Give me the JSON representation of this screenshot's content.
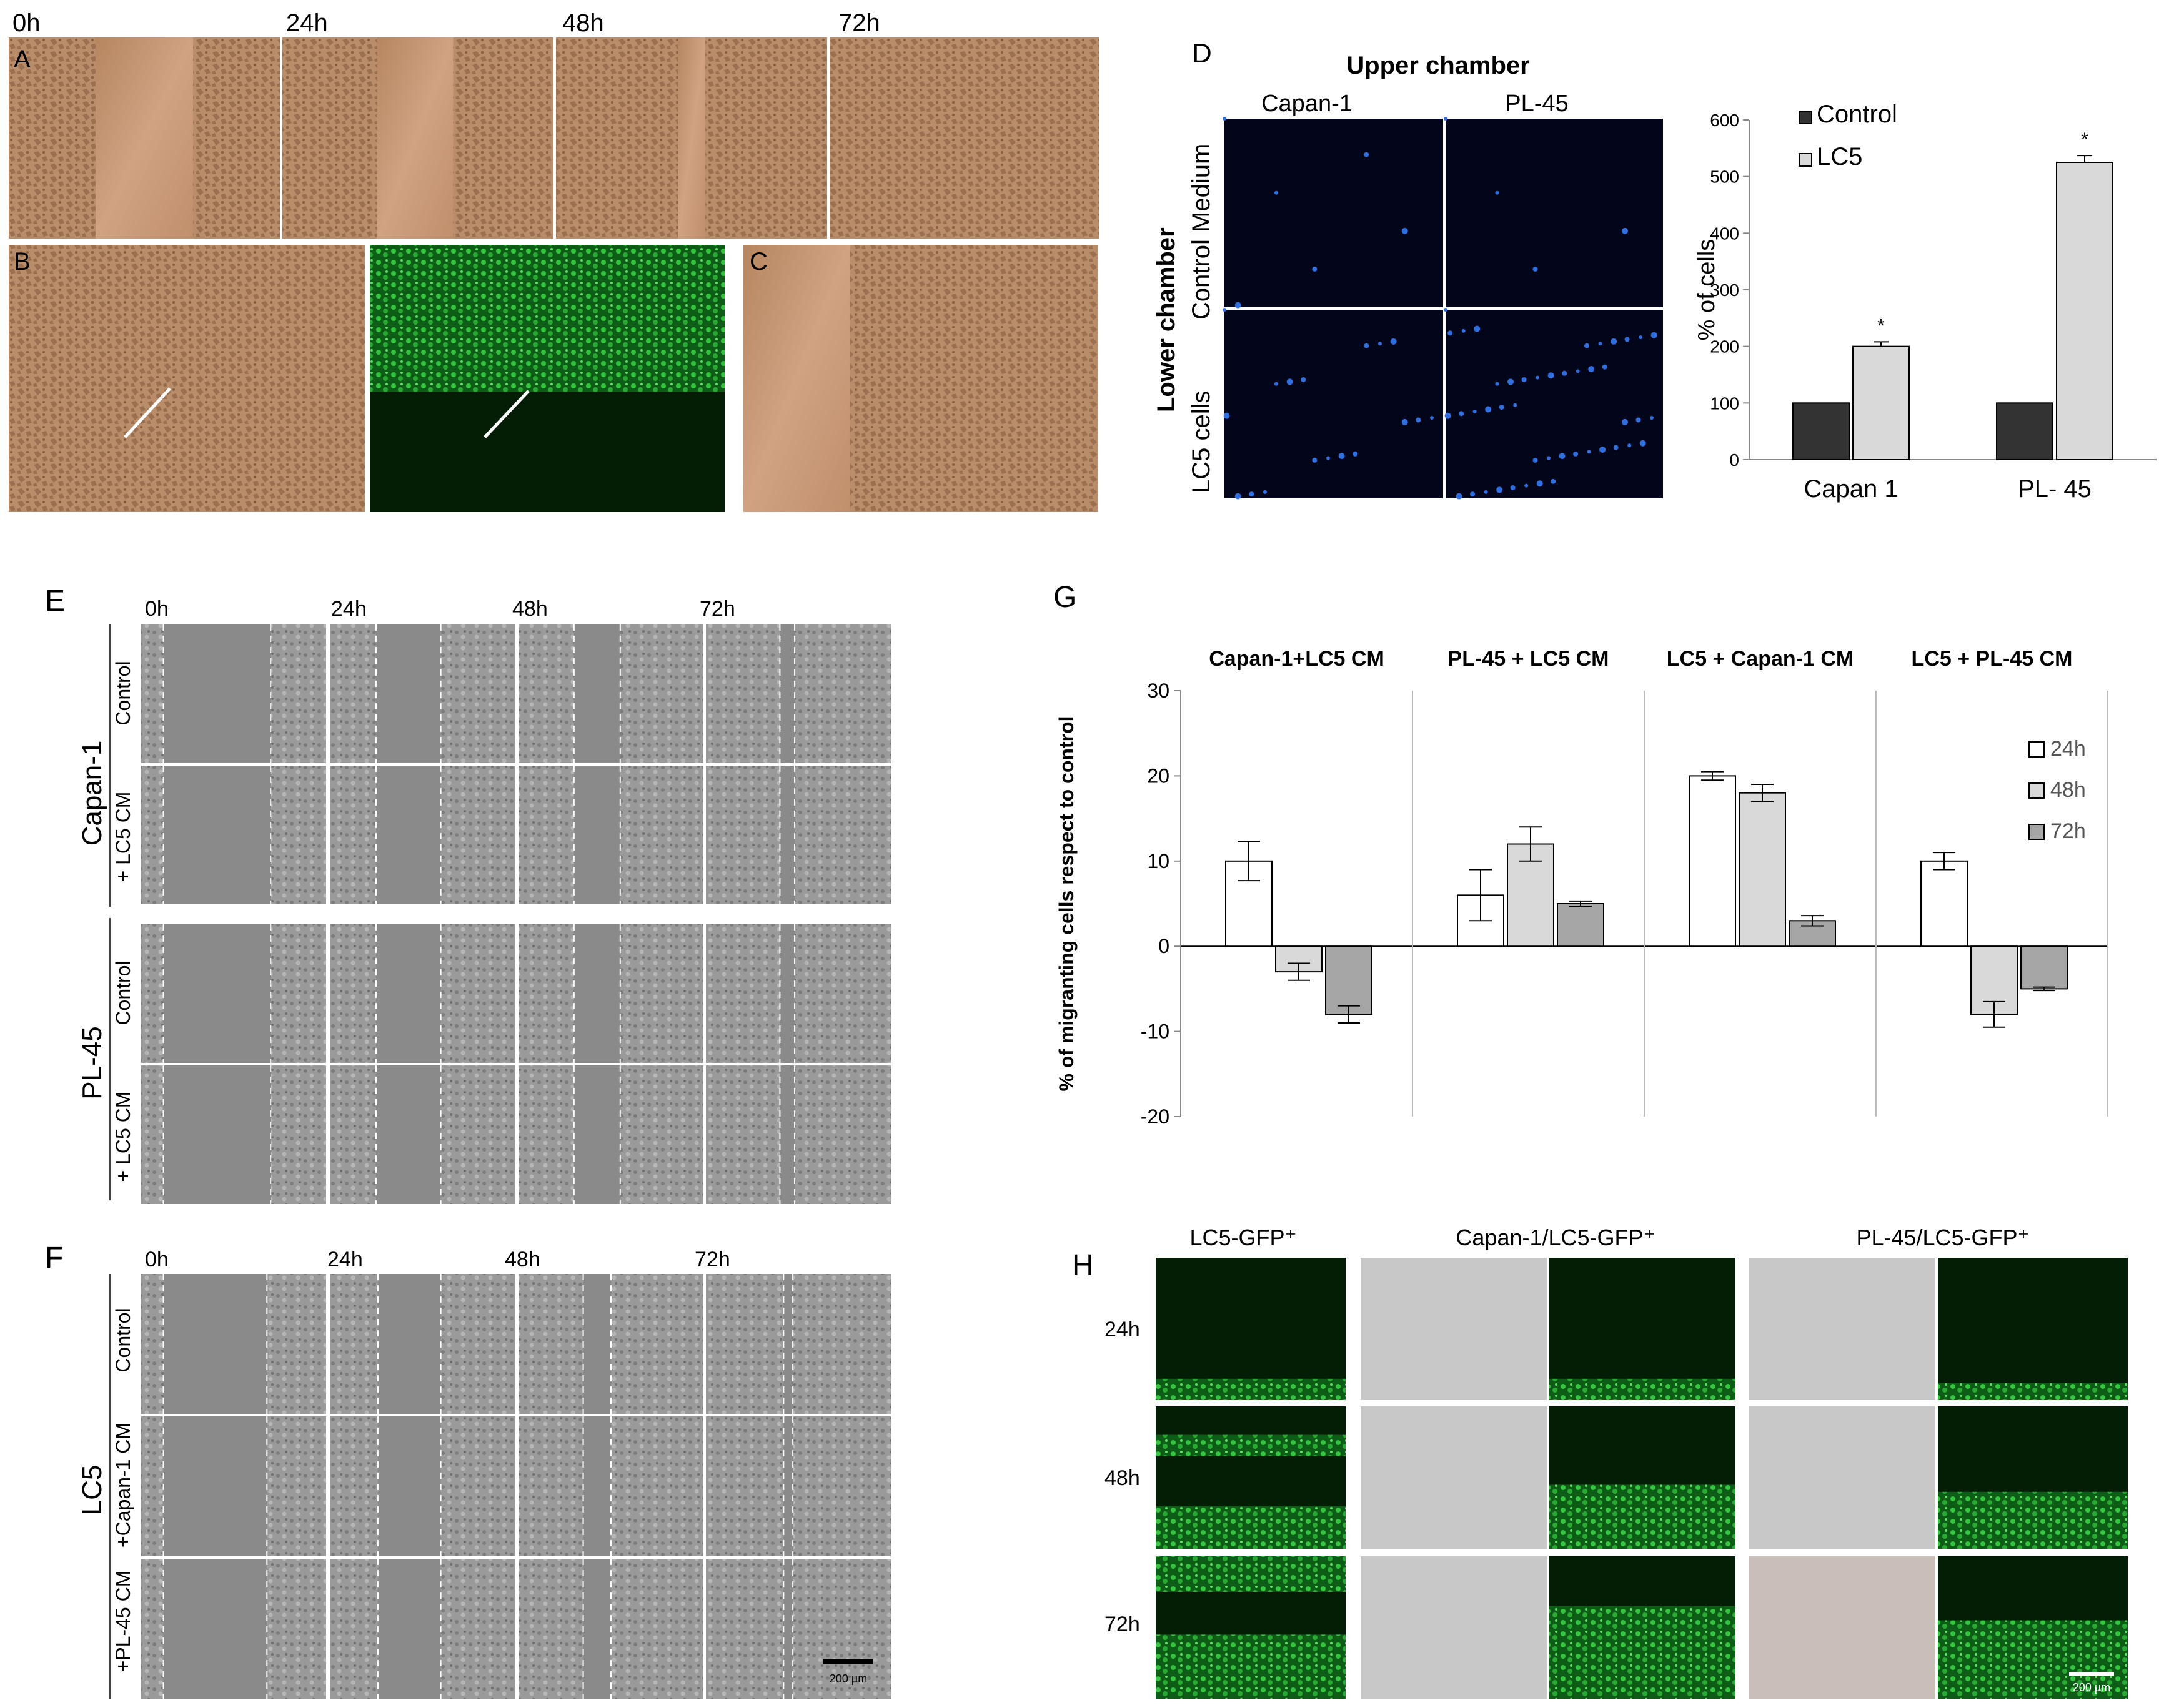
{
  "panelA": {
    "letter": "A",
    "timepoints": [
      "0h",
      "24h",
      "48h",
      "72h"
    ]
  },
  "panelB": {
    "letter": "B"
  },
  "panelC": {
    "letter": "C"
  },
  "panelD": {
    "letter": "D",
    "upper_chamber_title": "Upper chamber",
    "upper_labels": [
      "Capan-1",
      "PL-45"
    ],
    "lower_chamber_title": "Lower chamber",
    "row_labels": [
      "Control Medium",
      "LC5 cells"
    ]
  },
  "panelE": {
    "letter": "E",
    "timepoints": [
      "0h",
      "24h",
      "48h",
      "72h"
    ],
    "group_labels": [
      "Capan-1",
      "PL-45"
    ],
    "row_labels": [
      "Control",
      "+ LC5 CM",
      "Control",
      "+ LC5 CM"
    ]
  },
  "panelF": {
    "letter": "F",
    "timepoints": [
      "0h",
      "24h",
      "48h",
      "72h"
    ],
    "group_label": "LC5",
    "row_labels": [
      "Control",
      "+Capan-1 CM",
      "+PL-45 CM"
    ],
    "scalebar_label": "200 µm"
  },
  "panelG": {
    "letter": "G"
  },
  "panelH": {
    "letter": "H",
    "column_headers": [
      "LC5-GFP⁺",
      "Capan-1/LC5-GFP⁺",
      "PL-45/LC5-GFP⁺"
    ],
    "row_labels": [
      "24h",
      "48h",
      "72h"
    ],
    "scalebar_label": "200 µm"
  },
  "colors": {
    "brightfield_tan": "#c9987a",
    "fluor_green": "#2fbf3a",
    "dapi_blue": "#2f6fe0",
    "bar_dark": "#333333",
    "bar_light": "#d9d9d9",
    "bar_mid": "#a6a6a6"
  },
  "chart_data": [
    {
      "type": "bar",
      "panel": "D",
      "categories": [
        "Capan 1",
        "PL- 45"
      ],
      "series": [
        {
          "name": "Control",
          "values": [
            100,
            100
          ],
          "color": "#333333"
        },
        {
          "name": "LC5",
          "values": [
            200,
            525
          ],
          "errors": [
            8,
            12
          ],
          "color": "#d9d9d9"
        }
      ],
      "ylabel": "% of cells",
      "ylim": [
        0,
        600
      ],
      "yticks": [
        0,
        100,
        200,
        300,
        400,
        500,
        600
      ],
      "annotations": [
        "*",
        "*"
      ],
      "legend": "top-left"
    },
    {
      "type": "bar",
      "panel": "G",
      "groups": [
        "Capan-1+LC5 CM",
        "PL-45 + LC5 CM",
        "LC5 + Capan-1 CM",
        "LC5 + PL-45 CM"
      ],
      "series": [
        {
          "name": "24h",
          "values": [
            10,
            6,
            20,
            10
          ],
          "errors": [
            2.3,
            3.0,
            0.5,
            1.0
          ],
          "color": "#ffffff"
        },
        {
          "name": "48h",
          "values": [
            -3,
            12,
            18,
            -8
          ],
          "errors": [
            1.0,
            2.0,
            1.0,
            1.5
          ],
          "color": "#d9d9d9"
        },
        {
          "name": "72h",
          "values": [
            -8,
            5,
            3,
            -5
          ],
          "errors": [
            1.0,
            0.3,
            0.6,
            0.2
          ],
          "color": "#a6a6a6"
        }
      ],
      "ylabel": "% of migranting cells respect to control",
      "ylim": [
        -20,
        30
      ],
      "yticks": [
        -20,
        -10,
        0,
        10,
        20,
        30
      ],
      "legend": "top-right"
    }
  ]
}
